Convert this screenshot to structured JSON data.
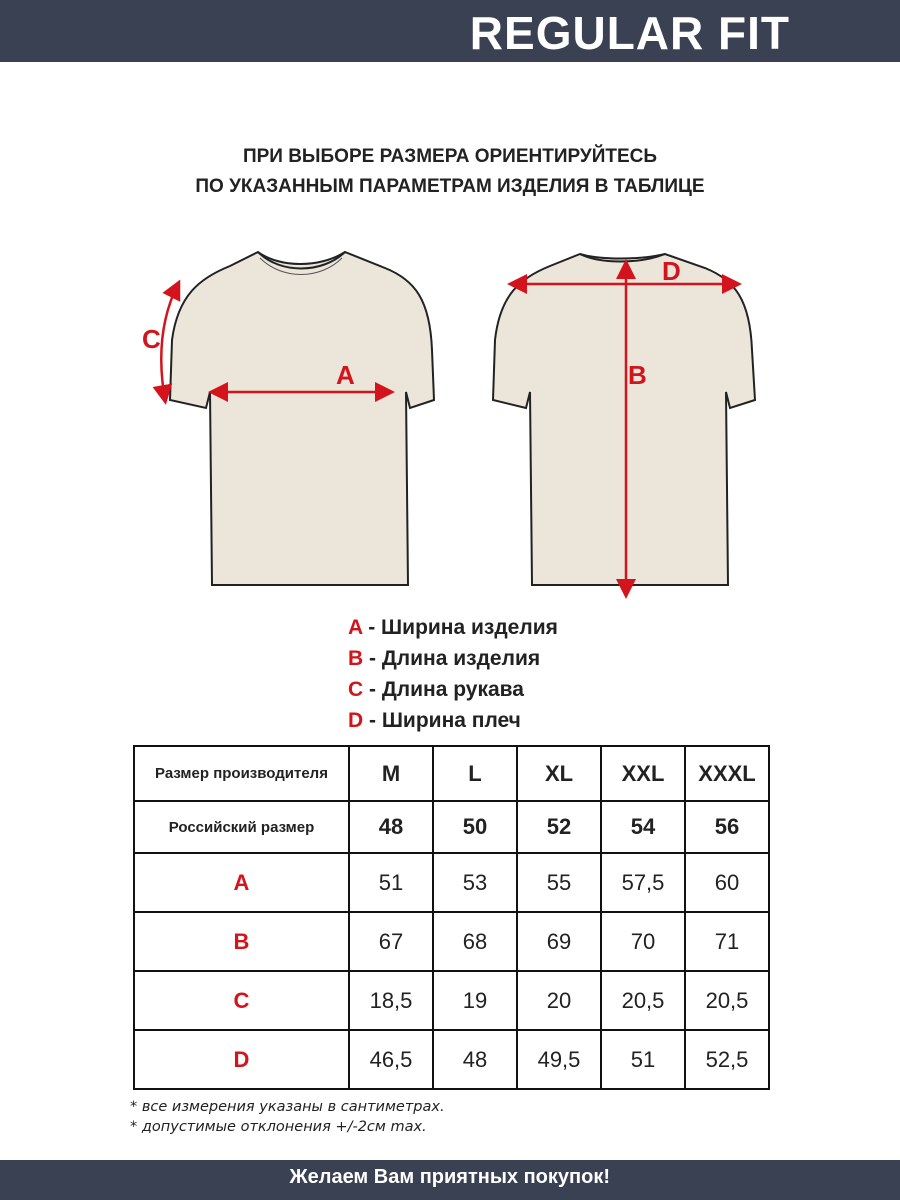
{
  "header": {
    "title": "REGULAR FIT"
  },
  "subtitle": {
    "line1": "ПРИ ВЫБОРЕ РАЗМЕРА ОРИЕНТИРУЙТЕСЬ",
    "line2": "ПО УКАЗАННЫМ ПАРАМЕТРАМ ИЗДЕЛИЯ В ТАБЛИЦЕ"
  },
  "diagram": {
    "labels": {
      "a": "A",
      "b": "B",
      "c": "C",
      "d": "D"
    },
    "accent_color": "#d4141c",
    "garment_color": "#ebe5da"
  },
  "legend": [
    {
      "key": "A",
      "text": " - Ширина изделия"
    },
    {
      "key": "B",
      "text": " - Длина изделия"
    },
    {
      "key": "C",
      "text": " - Длина рукава"
    },
    {
      "key": "D",
      "text": " - Ширина плеч"
    }
  ],
  "table": {
    "manufacturer_label": "Размер производителя",
    "manufacturer_sizes": [
      "M",
      "L",
      "XL",
      "XXL",
      "XXXL"
    ],
    "russian_label": "Российский размер",
    "russian_sizes": [
      "48",
      "50",
      "52",
      "54",
      "56"
    ],
    "rows": [
      {
        "key": "A",
        "values": [
          "51",
          "53",
          "55",
          "57,5",
          "60"
        ]
      },
      {
        "key": "B",
        "values": [
          "67",
          "68",
          "69",
          "70",
          "71"
        ]
      },
      {
        "key": "C",
        "values": [
          "18,5",
          "19",
          "20",
          "20,5",
          "20,5"
        ]
      },
      {
        "key": "D",
        "values": [
          "46,5",
          "48",
          "49,5",
          "51",
          "52,5"
        ]
      }
    ]
  },
  "notes": [
    "* все измерения указаны в сантиметрах.",
    "* допустимые отклонения +/-2см max."
  ],
  "footer": {
    "text": "Желаем Вам приятных покупок!"
  }
}
